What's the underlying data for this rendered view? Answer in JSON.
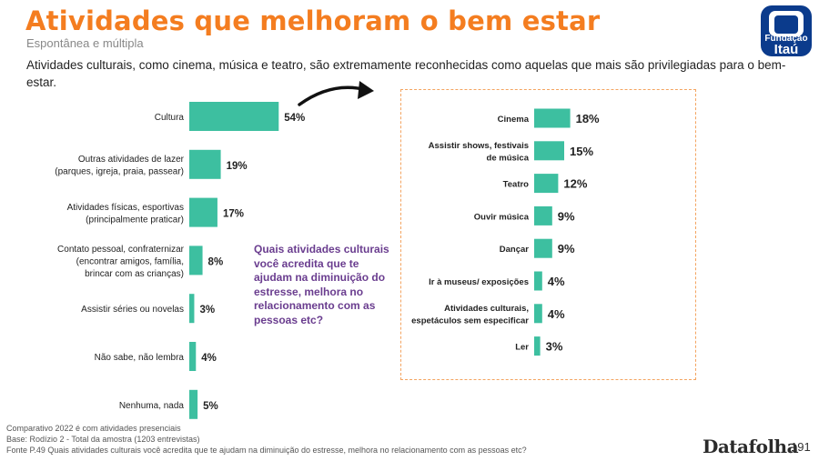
{
  "header": {
    "title": "Atividades que melhoram o bem estar",
    "subtitle": "Espontânea e múltipla",
    "intro": "Atividades culturais, como cinema, música e teatro, são extremamente reconhecidas como aquelas que mais são privilegiadas para o bem-estar."
  },
  "logo": {
    "line1": "Fundação",
    "line2": "Itaú",
    "primary_color": "#0b3b8c",
    "accent_color": "#f47d20"
  },
  "question": "Quais atividades culturais você acredita que te ajudam na diminuição do estresse, melhora no relacionamento com as pessoas etc?",
  "colors": {
    "bar": "#3dbfa0",
    "title": "#f47d20",
    "question": "#6a3d8f"
  },
  "chart_data": [
    {
      "type": "bar",
      "orientation": "horizontal",
      "categories": [
        "Cultura",
        "Outras atividades de lazer (parques, igreja, praia, passear)",
        "Atividades físicas, esportivas (principalmente praticar)",
        "Contato pessoal, confraternizar (encontrar amigos, família, brincar com as crianças)",
        "Assistir séries ou novelas",
        "Não sabe, não lembra",
        "Nenhuma, nada"
      ],
      "values": [
        54,
        19,
        17,
        8,
        3,
        4,
        5
      ],
      "value_labels": [
        "54%",
        "19%",
        "17%",
        "8%",
        "3%",
        "4%",
        "5%"
      ],
      "unit": "%"
    },
    {
      "type": "bar",
      "orientation": "horizontal",
      "categories": [
        "Cinema",
        "Assistir shows, festivais de música",
        "Teatro",
        "Ouvir música",
        "Dançar",
        "Ir à museus/ exposições",
        "Atividades culturais, espetáculos sem especificar",
        "Ler"
      ],
      "values": [
        18,
        15,
        12,
        9,
        9,
        4,
        4,
        3
      ],
      "value_labels": [
        "18%",
        "15%",
        "12%",
        "9%",
        "9%",
        "4%",
        "4%",
        "3%"
      ],
      "unit": "%"
    }
  ],
  "footer": {
    "line1": "Comparativo 2022 é com atividades presenciais",
    "line2": "Base: Rodízio 2 - Total da amostra (1203 entrevistas)",
    "line3": "Fonte P.49 Quais atividades culturais você acredita que te ajudam na diminuição do estresse, melhora no relacionamento com as pessoas etc?",
    "brand": "Datafolha",
    "page": "191"
  }
}
